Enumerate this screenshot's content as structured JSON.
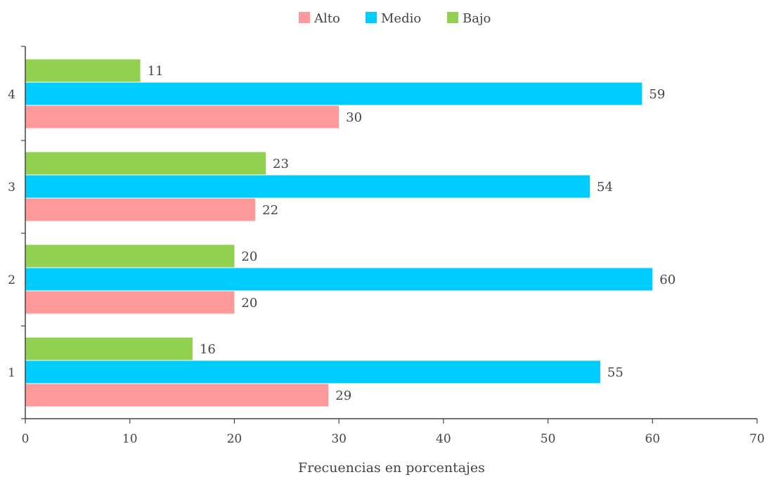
{
  "chart_data": {
    "type": "bar",
    "orientation": "horizontal",
    "categories": [
      "1",
      "2",
      "3",
      "4"
    ],
    "series": [
      {
        "name": "Alto",
        "color": "#FF9999",
        "values": [
          29,
          20,
          22,
          30
        ]
      },
      {
        "name": "Medio",
        "color": "#00CCFF",
        "values": [
          55,
          60,
          54,
          59
        ]
      },
      {
        "name": "Bajo",
        "color": "#92D050",
        "values": [
          16,
          20,
          23,
          11
        ]
      }
    ],
    "xlabel": "Frecuencias en porcentajes",
    "ylabel": "",
    "xlim": [
      0,
      70
    ],
    "xticks": [
      0,
      10,
      20,
      30,
      40,
      50,
      60,
      70
    ],
    "legend_position": "top",
    "grid": false,
    "data_labels": true
  }
}
